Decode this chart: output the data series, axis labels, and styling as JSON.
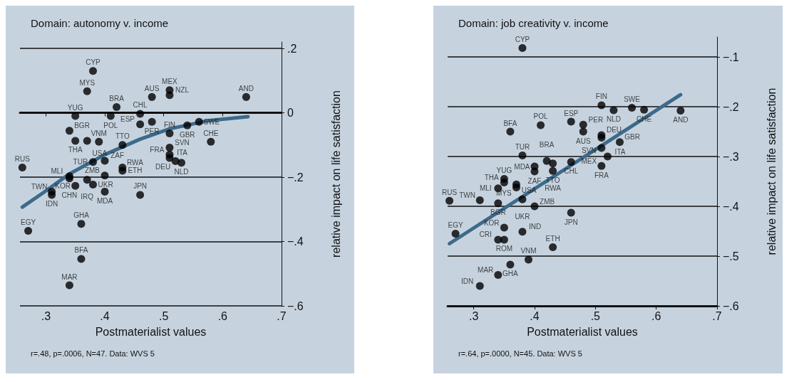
{
  "chart_data": [
    {
      "type": "scatter",
      "title": "Domain: autonomy v. income",
      "xlabel": "Postmaterialist values",
      "ylabel": "relative impact on life satisfaction",
      "marker": "circle",
      "grid": "y",
      "xlim": [
        0.256,
        0.7
      ],
      "ylim": [
        -0.6,
        0.22
      ],
      "xticks": [
        {
          "value": 0.3,
          "label": ".3"
        },
        {
          "value": 0.4,
          "label": ".4"
        },
        {
          "value": 0.5,
          "label": ".5"
        },
        {
          "value": 0.6,
          "label": ".6"
        },
        {
          "value": 0.7,
          "label": ".7"
        }
      ],
      "yticks": [
        {
          "value": -0.6,
          "label": "−.6"
        },
        {
          "value": -0.4,
          "label": "−.4"
        },
        {
          "value": -0.2,
          "label": "−.2"
        },
        0,
        {
          "value": 0.2,
          "label": ".2"
        }
      ],
      "series": [
        {
          "type": "scatter",
          "color": "#000000",
          "x": [
            0.38,
            0.37,
            0.42,
            0.41,
            0.35,
            0.48,
            0.51,
            0.51,
            0.46,
            0.46,
            0.48,
            0.34,
            0.35,
            0.37,
            0.39,
            0.43,
            0.51,
            0.51,
            0.51,
            0.51,
            0.52,
            0.53,
            0.54,
            0.56,
            0.64,
            0.58,
            0.26,
            0.38,
            0.4,
            0.43,
            0.43,
            0.4,
            0.34,
            0.34,
            0.37,
            0.35,
            0.38,
            0.4,
            0.46,
            0.31,
            0.31,
            0.36,
            0.27,
            0.36,
            0.34
          ],
          "values": [
            0.13,
            0.067,
            0.018,
            -0.01,
            -0.01,
            0.049,
            0.07,
            0.055,
            -0.003,
            -0.036,
            -0.028,
            -0.056,
            -0.087,
            -0.087,
            -0.09,
            -0.1,
            -0.064,
            -0.108,
            -0.13,
            -0.14,
            -0.15,
            -0.155,
            -0.039,
            -0.028,
            0.049,
            -0.09,
            -0.17,
            -0.153,
            -0.149,
            -0.17,
            -0.18,
            -0.195,
            -0.197,
            -0.204,
            -0.208,
            -0.227,
            -0.223,
            -0.245,
            -0.255,
            -0.245,
            -0.255,
            -0.345,
            -0.367,
            -0.454,
            -0.536
          ]
        },
        {
          "type": "line",
          "marker": "none",
          "color": "#3e6a8a",
          "x": [
            0.26,
            0.295,
            0.34,
            0.4,
            0.46,
            0.51,
            0.574,
            0.643
          ],
          "values": [
            -0.293,
            -0.249,
            -0.19,
            -0.13,
            -0.082,
            -0.05,
            -0.025,
            -0.012
          ]
        }
      ],
      "annotations": [
        {
          "text": "CYP",
          "x": 0.38,
          "y": 0.13
        },
        {
          "text": "MYS",
          "x": 0.37,
          "y": 0.067
        },
        {
          "text": "BRA",
          "x": 0.42,
          "y": 0.018
        },
        {
          "text": "POL",
          "x": 0.41,
          "y": -0.01
        },
        {
          "text": "YUG",
          "x": 0.35,
          "y": -0.01
        },
        {
          "text": "AUS",
          "x": 0.48,
          "y": 0.049
        },
        {
          "text": "MEX",
          "x": 0.51,
          "y": 0.07
        },
        {
          "text": "NZL",
          "x": 0.51,
          "y": 0.055
        },
        {
          "text": "CHL",
          "x": 0.46,
          "y": -0.003
        },
        {
          "text": "ESP",
          "x": 0.46,
          "y": -0.036
        },
        {
          "text": "PER",
          "x": 0.48,
          "y": -0.028
        },
        {
          "text": "BGR",
          "x": 0.34,
          "y": -0.056
        },
        {
          "text": "THA",
          "x": 0.35,
          "y": -0.087
        },
        {
          "text": "USA",
          "x": 0.37,
          "y": -0.087
        },
        {
          "text": "VNM",
          "x": 0.39,
          "y": -0.09
        },
        {
          "text": "TTO",
          "x": 0.43,
          "y": -0.1
        },
        {
          "text": "FIN",
          "x": 0.51,
          "y": -0.064
        },
        {
          "text": "SVN",
          "x": 0.51,
          "y": -0.108
        },
        {
          "text": "FRA",
          "x": 0.51,
          "y": -0.13
        },
        {
          "text": "ITA",
          "x": 0.51,
          "y": -0.14
        },
        {
          "text": "DEU",
          "x": 0.52,
          "y": -0.15
        },
        {
          "text": "NLD",
          "x": 0.53,
          "y": -0.155
        },
        {
          "text": "GBR",
          "x": 0.54,
          "y": -0.039
        },
        {
          "text": "SWE",
          "x": 0.56,
          "y": -0.028
        },
        {
          "text": "AND",
          "x": 0.64,
          "y": 0.049
        },
        {
          "text": "CHE",
          "x": 0.58,
          "y": -0.09
        },
        {
          "text": "RUS",
          "x": 0.26,
          "y": -0.17
        },
        {
          "text": "TUR",
          "x": 0.38,
          "y": -0.153
        },
        {
          "text": "ZAF",
          "x": 0.4,
          "y": -0.149
        },
        {
          "text": "RWA",
          "x": 0.43,
          "y": -0.17
        },
        {
          "text": "ETH",
          "x": 0.43,
          "y": -0.18
        },
        {
          "text": "ZMB",
          "x": 0.4,
          "y": -0.195
        },
        {
          "text": "MLI",
          "x": 0.34,
          "y": -0.197
        },
        {
          "text": "CHN",
          "x": 0.34,
          "y": -0.204
        },
        {
          "text": "IRQ",
          "x": 0.37,
          "y": -0.208
        },
        {
          "text": "KOR",
          "x": 0.35,
          "y": -0.227
        },
        {
          "text": "UKR",
          "x": 0.38,
          "y": -0.223
        },
        {
          "text": "MDA",
          "x": 0.4,
          "y": -0.245
        },
        {
          "text": "JPN",
          "x": 0.46,
          "y": -0.255
        },
        {
          "text": "TWN",
          "x": 0.31,
          "y": -0.245
        },
        {
          "text": "IDN",
          "x": 0.31,
          "y": -0.255
        },
        {
          "text": "GHA",
          "x": 0.36,
          "y": -0.345
        },
        {
          "text": "EGY",
          "x": 0.27,
          "y": -0.367
        },
        {
          "text": "BFA",
          "x": 0.36,
          "y": -0.454
        },
        {
          "text": "MAR",
          "x": 0.34,
          "y": -0.536
        },
        "r=.48, p=.0006, N=47. Data: WVS 5"
      ]
    },
    {
      "type": "scatter",
      "title": "Domain: job creativity v. income",
      "xlabel": "Postmaterialist values",
      "ylabel": "relative impact on life satisfaction",
      "marker": "circle",
      "grid": "y",
      "xlim": [
        0.257,
        0.7
      ],
      "ylim": [
        -0.6,
        -0.06
      ],
      "xticks": [
        {
          "value": 0.3,
          "label": ".3"
        },
        {
          "value": 0.4,
          "label": ".4"
        },
        {
          "value": 0.5,
          "label": ".5"
        },
        {
          "value": 0.6,
          "label": ".6"
        },
        {
          "value": 0.7,
          "label": ".7"
        }
      ],
      "yticks": [
        {
          "value": -0.6,
          "label": "−.6"
        },
        {
          "value": -0.5,
          "label": "−.5"
        },
        {
          "value": -0.4,
          "label": "−.4"
        },
        {
          "value": -0.3,
          "label": "−.3"
        },
        {
          "value": -0.2,
          "label": "−.2"
        },
        {
          "value": -0.1,
          "label": "−.1"
        }
      ],
      "series": [
        {
          "type": "scatter",
          "color": "#000000",
          "x": [
            0.38,
            0.51,
            0.53,
            0.56,
            0.58,
            0.64,
            0.36,
            0.41,
            0.46,
            0.48,
            0.48,
            0.51,
            0.51,
            0.54,
            0.51,
            0.52,
            0.51,
            0.38,
            0.42,
            0.43,
            0.46,
            0.4,
            0.4,
            0.43,
            0.35,
            0.35,
            0.37,
            0.37,
            0.34,
            0.38,
            0.26,
            0.31,
            0.34,
            0.4,
            0.46,
            0.27,
            0.35,
            0.38,
            0.34,
            0.35,
            0.43,
            0.39,
            0.36,
            0.34,
            0.31
          ],
          "values": [
            -0.082,
            -0.197,
            -0.207,
            -0.202,
            -0.206,
            -0.208,
            -0.25,
            -0.237,
            -0.23,
            -0.236,
            -0.25,
            -0.257,
            -0.262,
            -0.271,
            -0.283,
            -0.3,
            -0.319,
            -0.298,
            -0.309,
            -0.314,
            -0.311,
            -0.32,
            -0.33,
            -0.329,
            -0.345,
            -0.352,
            -0.356,
            -0.362,
            -0.364,
            -0.386,
            -0.389,
            -0.388,
            -0.394,
            -0.4,
            -0.413,
            -0.455,
            -0.443,
            -0.451,
            -0.467,
            -0.467,
            -0.482,
            -0.507,
            -0.517,
            -0.538,
            -0.56
          ]
        },
        {
          "type": "line",
          "marker": "none",
          "color": "#3e6a8a",
          "x": [
            0.26,
            0.64
          ],
          "values": [
            -0.475,
            -0.176
          ]
        }
      ],
      "annotations": [
        {
          "text": "CYP",
          "x": 0.38,
          "y": -0.082
        },
        {
          "text": "FIN",
          "x": 0.51,
          "y": -0.197
        },
        {
          "text": "NLD",
          "x": 0.53,
          "y": -0.207
        },
        {
          "text": "SWE",
          "x": 0.56,
          "y": -0.202
        },
        {
          "text": "CHE",
          "x": 0.58,
          "y": -0.206
        },
        {
          "text": "AND",
          "x": 0.64,
          "y": -0.208
        },
        {
          "text": "BFA",
          "x": 0.36,
          "y": -0.25
        },
        {
          "text": "POL",
          "x": 0.41,
          "y": -0.237
        },
        {
          "text": "ESP",
          "x": 0.46,
          "y": -0.23
        },
        {
          "text": "PER",
          "x": 0.48,
          "y": -0.236
        },
        {
          "text": "AUS",
          "x": 0.48,
          "y": -0.25
        },
        {
          "text": "DEU",
          "x": 0.51,
          "y": -0.257
        },
        {
          "text": "SVN",
          "x": 0.51,
          "y": -0.262
        },
        {
          "text": "GBR",
          "x": 0.54,
          "y": -0.271
        },
        {
          "text": "MEX",
          "x": 0.51,
          "y": -0.283
        },
        {
          "text": "ITA",
          "x": 0.52,
          "y": -0.3
        },
        {
          "text": "FRA",
          "x": 0.51,
          "y": -0.319
        },
        {
          "text": "TUR",
          "x": 0.38,
          "y": -0.298
        },
        {
          "text": "BRA",
          "x": 0.42,
          "y": -0.309
        },
        {
          "text": "TTO",
          "x": 0.43,
          "y": -0.314
        },
        {
          "text": "CHL",
          "x": 0.46,
          "y": -0.311
        },
        {
          "text": "MDA",
          "x": 0.4,
          "y": -0.32
        },
        {
          "text": "ZAF",
          "x": 0.4,
          "y": -0.33
        },
        {
          "text": "RWA",
          "x": 0.43,
          "y": -0.329
        },
        {
          "text": "YUG",
          "x": 0.35,
          "y": -0.345
        },
        {
          "text": "THA",
          "x": 0.35,
          "y": -0.352
        },
        {
          "text": "USA",
          "x": 0.37,
          "y": -0.356
        },
        {
          "text": "MYS",
          "x": 0.37,
          "y": -0.362
        },
        {
          "text": "MLI",
          "x": 0.34,
          "y": -0.364
        },
        {
          "text": "UKR",
          "x": 0.38,
          "y": -0.386
        },
        {
          "text": "RUS",
          "x": 0.26,
          "y": -0.389
        },
        {
          "text": "TWN",
          "x": 0.31,
          "y": -0.388
        },
        {
          "text": "BGR",
          "x": 0.34,
          "y": -0.394
        },
        {
          "text": "ZMB",
          "x": 0.4,
          "y": -0.4
        },
        {
          "text": "JPN",
          "x": 0.46,
          "y": -0.413
        },
        {
          "text": "EGY",
          "x": 0.27,
          "y": -0.455
        },
        {
          "text": "KOR",
          "x": 0.35,
          "y": -0.443
        },
        {
          "text": "IND",
          "x": 0.38,
          "y": -0.451
        },
        {
          "text": "CRI",
          "x": 0.34,
          "y": -0.467
        },
        {
          "text": "ROM",
          "x": 0.35,
          "y": -0.467
        },
        {
          "text": "ETH",
          "x": 0.43,
          "y": -0.482
        },
        {
          "text": "VNM",
          "x": 0.39,
          "y": -0.507
        },
        {
          "text": "GHA",
          "x": 0.36,
          "y": -0.517
        },
        {
          "text": "MAR",
          "x": 0.34,
          "y": -0.538
        },
        {
          "text": "IDN",
          "x": 0.31,
          "y": -0.56
        },
        "r=.64, p=.0000, N=45. Data: WVS 5"
      ]
    }
  ]
}
